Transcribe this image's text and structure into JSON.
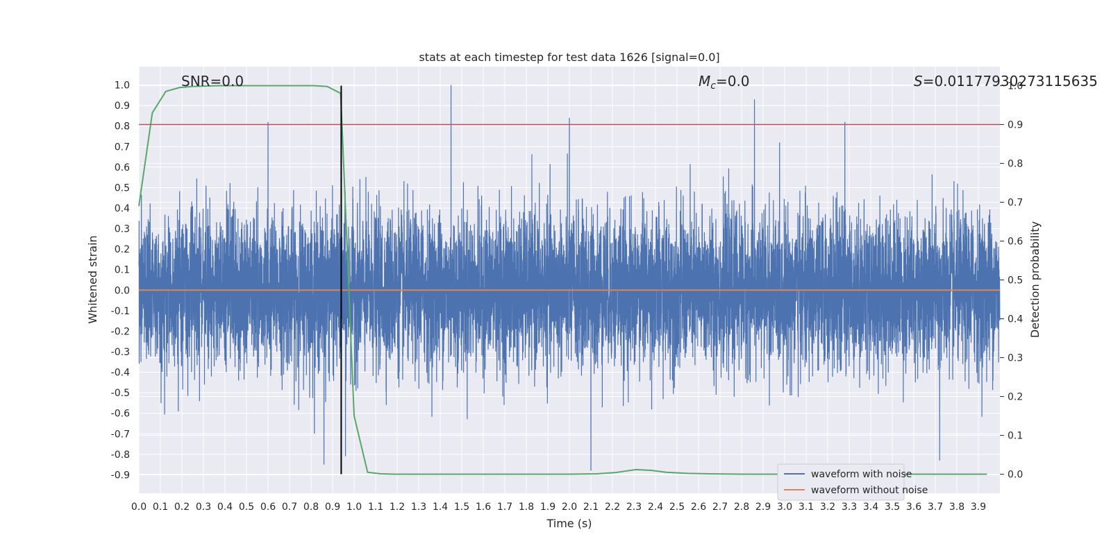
{
  "chart_data": {
    "type": "line",
    "title": "stats at each timestep for test data 1626 [signal=0.0]",
    "xlabel": "Time (s)",
    "ylabel": "Whitened strain",
    "ylabel_right": "Detection probability",
    "xlim": [
      0.0,
      4.0
    ],
    "ylim": [
      -0.99,
      1.09
    ],
    "ylim_right": [
      -0.049,
      1.049
    ],
    "x_ticks": [
      "0.0",
      "0.1",
      "0.2",
      "0.3",
      "0.4",
      "0.5",
      "0.6",
      "0.7",
      "0.8",
      "0.9",
      "1.0",
      "1.1",
      "1.2",
      "1.3",
      "1.4",
      "1.5",
      "1.6",
      "1.7",
      "1.8",
      "1.9",
      "2.0",
      "2.1",
      "2.2",
      "2.3",
      "2.4",
      "2.5",
      "2.6",
      "2.7",
      "2.8",
      "2.9",
      "3.0",
      "3.1",
      "3.2",
      "3.3",
      "3.4",
      "3.5",
      "3.6",
      "3.7",
      "3.8",
      "3.9"
    ],
    "y_ticks": [
      "-0.9",
      "-0.8",
      "-0.7",
      "-0.6",
      "-0.5",
      "-0.4",
      "-0.3",
      "-0.2",
      "-0.1",
      "0.0",
      "0.1",
      "0.2",
      "0.3",
      "0.4",
      "0.5",
      "0.6",
      "0.7",
      "0.8",
      "0.9",
      "1.0"
    ],
    "y_ticks_right": [
      "0.0",
      "0.1",
      "0.2",
      "0.3",
      "0.4",
      "0.5",
      "0.6",
      "0.7",
      "0.8",
      "0.9",
      "1.0"
    ],
    "grid": true,
    "annotations": {
      "snr": "SNR=0.0",
      "mc_symbol": "M",
      "mc_subscript": "c",
      "mc_value": "=0.0",
      "s_symbol": "S",
      "s_value": "=0.011779302731156​35"
    },
    "series": [
      {
        "name": "waveform with noise",
        "color": "#4c72b0",
        "axis": "left",
        "description_of_values": "noise samples roughly within ±0.5, peaks up to ~1.0 and down to ~-0.88",
        "sample_rate": 2048,
        "amplitude": 0.3,
        "peaks": [
          [
            1.45,
            1.0
          ],
          [
            2.86,
            0.93
          ],
          [
            2.0,
            0.84
          ],
          [
            0.6,
            0.82
          ],
          [
            3.28,
            0.82
          ],
          [
            0.94,
            0.86
          ],
          [
            2.1,
            -0.88
          ],
          [
            0.86,
            -0.85
          ],
          [
            0.96,
            -0.81
          ],
          [
            3.72,
            -0.83
          ]
        ]
      },
      {
        "name": "waveform without noise",
        "color": "#dd8452",
        "axis": "left",
        "x": [
          0.0,
          4.0
        ],
        "values": [
          0.0,
          0.0
        ]
      },
      {
        "color": "#55a868",
        "axis": "right",
        "x": [
          0.0,
          0.0625,
          0.125,
          0.1875,
          0.25,
          0.3125,
          0.375,
          0.4375,
          0.5,
          0.5625,
          0.625,
          0.6875,
          0.75,
          0.8125,
          0.875,
          0.9375,
          1.0,
          1.0625,
          1.125,
          1.1875,
          1.25,
          1.5,
          1.75,
          2.0,
          2.125,
          2.21,
          2.26,
          2.31,
          2.38,
          2.45,
          2.55,
          2.65,
          2.8,
          3.0,
          3.5,
          3.94
        ],
        "values": [
          0.69,
          0.93,
          0.985,
          0.995,
          0.998,
          0.999,
          1.0,
          1.0,
          1.0,
          1.0,
          1.0,
          1.0,
          1.0,
          1.0,
          0.998,
          0.98,
          0.15,
          0.005,
          0.001,
          0.0,
          0.0,
          0.0,
          0.0,
          0.0,
          0.001,
          0.004,
          0.008,
          0.012,
          0.01,
          0.005,
          0.002,
          0.001,
          0.0,
          0.0,
          0.0,
          0.0
        ]
      },
      {
        "color": "#c44e52",
        "axis": "right",
        "x": [
          0.0,
          4.0
        ],
        "values": [
          0.9,
          0.9
        ]
      }
    ],
    "vline": {
      "x": 0.94,
      "color": "#000000"
    },
    "legend": {
      "placement": "lower-right",
      "entries": [
        {
          "label": "waveform with noise",
          "color": "#4c72b0"
        },
        {
          "label": "waveform without noise",
          "color": "#dd8452"
        }
      ]
    },
    "colors": {
      "background": "#eaeaf2",
      "grid": "#ffffff",
      "text": "#262626"
    }
  }
}
